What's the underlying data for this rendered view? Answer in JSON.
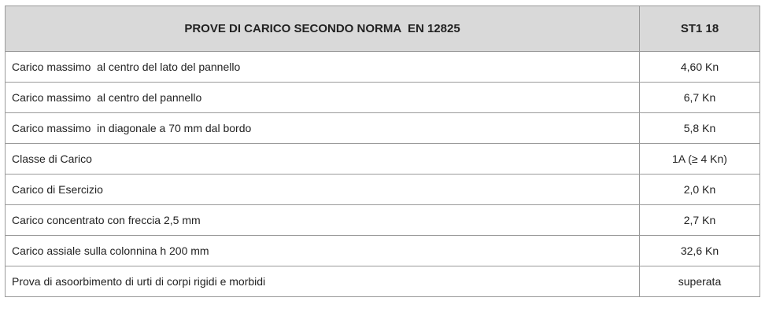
{
  "table": {
    "header": {
      "title": "PROVE DI CARICO SECONDO NORMA  EN 12825",
      "model": "ST1 18"
    },
    "rows": [
      {
        "label": "Carico massimo  al centro del lato del pannello",
        "value": "4,60 Kn"
      },
      {
        "label": "Carico massimo  al centro del pannello",
        "value": "6,7 Kn"
      },
      {
        "label": "Carico massimo  in diagonale a 70 mm dal bordo",
        "value": "5,8 Kn"
      },
      {
        "label": "Classe di Carico",
        "value": "1A (≥ 4 Kn)"
      },
      {
        "label": "Carico di Esercizio",
        "value": "2,0 Kn"
      },
      {
        "label": "Carico concentrato con freccia 2,5 mm",
        "value": "2,7 Kn"
      },
      {
        "label": "Carico assiale sulla colonnina h 200 mm",
        "value": "32,6 Kn"
      },
      {
        "label": "Prova di asoorbimento di urti di corpi rigidi e morbidi",
        "value": "superata"
      }
    ]
  }
}
